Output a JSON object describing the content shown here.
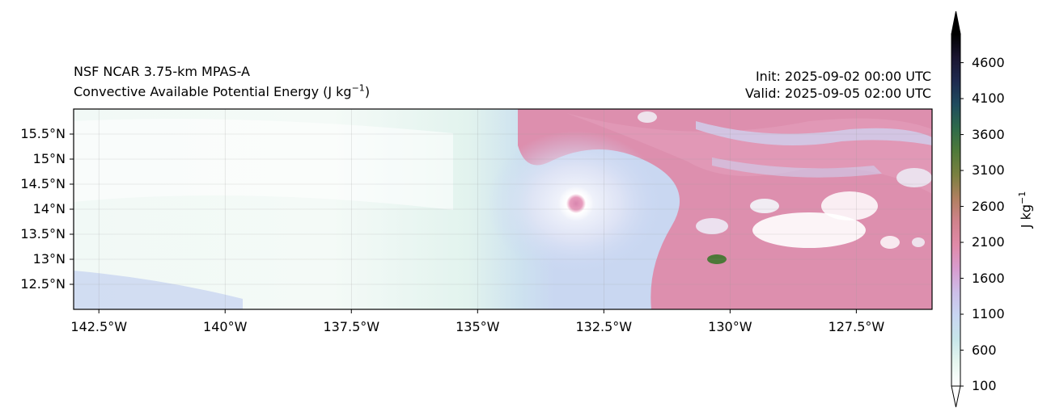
{
  "title": {
    "left_line1": "NSF NCAR 3.75-km MPAS-A",
    "left_line2_text": "Convective Available Potential Energy (J kg",
    "left_line2_sup": "−1",
    "left_line2_close": ")",
    "init": "Init: 2025-09-02 00:00 UTC",
    "valid": "Valid: 2025-09-05 02:00 UTC"
  },
  "map": {
    "lat_labels": [
      "15.5°N",
      "15°N",
      "14.5°N",
      "14°N",
      "13.5°N",
      "13°N",
      "12.5°N"
    ],
    "lat_values": [
      15.5,
      15.0,
      14.5,
      14.0,
      13.5,
      13.0,
      12.5
    ],
    "lon_labels": [
      "142.5°W",
      "140°W",
      "137.5°W",
      "135°W",
      "132.5°W",
      "130°W",
      "127.5°W"
    ],
    "lon_values": [
      -142.5,
      -140.0,
      -137.5,
      -135.0,
      -132.5,
      -130.0,
      -127.5
    ],
    "lon_range": [
      -143.0,
      -126.0
    ],
    "lat_range": [
      12.0,
      16.0
    ]
  },
  "colorbar": {
    "unit_text": "J kg",
    "unit_sup": "−1",
    "ticks": [
      "4600",
      "4100",
      "3600",
      "3100",
      "2600",
      "2100",
      "1600",
      "1100",
      "600",
      "100"
    ],
    "tick_values": [
      4600,
      4100,
      3600,
      3100,
      2600,
      2100,
      1600,
      1100,
      600,
      100
    ],
    "range": [
      100,
      5000
    ],
    "colors": [
      "#ffffff",
      "#e6f6ef",
      "#c7e6ea",
      "#c8d6f2",
      "#cdbee8",
      "#d89ccf",
      "#e08aa8",
      "#d0828c",
      "#b08060",
      "#7a8040",
      "#4f7a3a",
      "#2e6a4a",
      "#1f4b5e",
      "#1e2a4f",
      "#1a1530",
      "#000000"
    ]
  }
}
